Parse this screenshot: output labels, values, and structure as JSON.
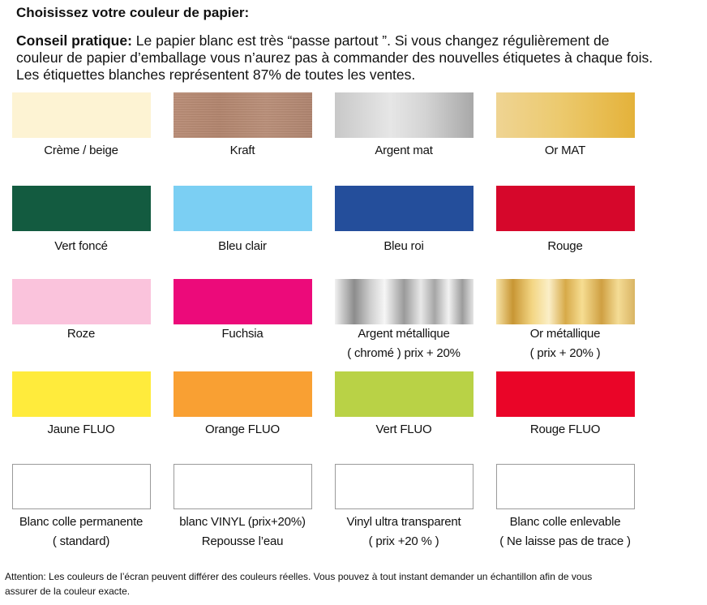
{
  "header": {
    "title": "Choisissez votre couleur de papier:",
    "tip_label": "Conseil pratique:",
    "tip_line1": " Le papier blanc est très “passe partout ”. Si vous changez régulièrement de",
    "tip_line2": "couleur de papier d’emballage vous n’aurez pas à commander des nouvelles étiquetes à  chaque fois.",
    "tip_line3": "Les étiquettes blanches représentent 87% de toutes les ventes."
  },
  "swatches": [
    {
      "name": "creme",
      "line1": "Crème / beige",
      "line2": "",
      "color": "#fdf3d3"
    },
    {
      "name": "kraft",
      "line1": "Kraft",
      "line2": "",
      "color": "#b78c76"
    },
    {
      "name": "argent-mat",
      "line1": "Argent mat",
      "line2": "",
      "color": "#bcbcbc"
    },
    {
      "name": "or-mat",
      "line1": "Or MAT",
      "line2": "",
      "color": "#e4b845"
    },
    {
      "name": "vert-fonce",
      "line1": "Vert foncé",
      "line2": "",
      "color": "#135b40"
    },
    {
      "name": "bleu-clair",
      "line1": "Bleu clair",
      "line2": "",
      "color": "#7bcff3"
    },
    {
      "name": "bleu-roi",
      "line1": "Bleu roi",
      "line2": "",
      "color": "#244e9b"
    },
    {
      "name": "rouge",
      "line1": "Rouge",
      "line2": "",
      "color": "#d6072b"
    },
    {
      "name": "roze",
      "line1": "Roze",
      "line2": "",
      "color": "#fac3dc"
    },
    {
      "name": "fuchsia",
      "line1": "Fuchsia",
      "line2": "",
      "color": "#ec0a7a"
    },
    {
      "name": "argent-metallique",
      "line1": "Argent métallique",
      "line2": "( chromé ) prix + 20%",
      "color": "#a9a9a9"
    },
    {
      "name": "or-metallique",
      "line1": "Or métallique",
      "line2": "( prix + 20% )",
      "color": "#e0b651"
    },
    {
      "name": "jaune-fluo",
      "line1": "Jaune FLUO",
      "line2": "",
      "color": "#ffeb3c"
    },
    {
      "name": "orange-fluo",
      "line1": "Orange FLUO",
      "line2": "",
      "color": "#f9a033"
    },
    {
      "name": "vert-fluo",
      "line1": "Vert FLUO",
      "line2": "",
      "color": "#b9d246"
    },
    {
      "name": "rouge-fluo",
      "line1": "Rouge FLUO",
      "line2": "",
      "color": "#ea0528"
    },
    {
      "name": "blanc-colle-permanente",
      "line1": "Blanc colle permanente",
      "line2": "( standard)",
      "color": "#ffffff"
    },
    {
      "name": "blanc-vinyl",
      "line1": "blanc VINYL (prix+20%)",
      "line2": "Repousse l’eau",
      "color": "#ffffff"
    },
    {
      "name": "vinyl-transparent",
      "line1": "Vinyl ultra transparent",
      "line2": "( prix +20 % )",
      "color": "#ffffff"
    },
    {
      "name": "blanc-colle-enlevable",
      "line1": "Blanc colle enlevable",
      "line2": "( Ne laisse pas de trace )",
      "color": "#ffffff"
    }
  ],
  "footer": {
    "line1": "Attention: Les couleurs de l’écran peuvent différer des couleurs réelles.  Vous pouvez à tout instant demander un échantillon afin de vous",
    "line2": "assurer de la couleur exacte."
  }
}
